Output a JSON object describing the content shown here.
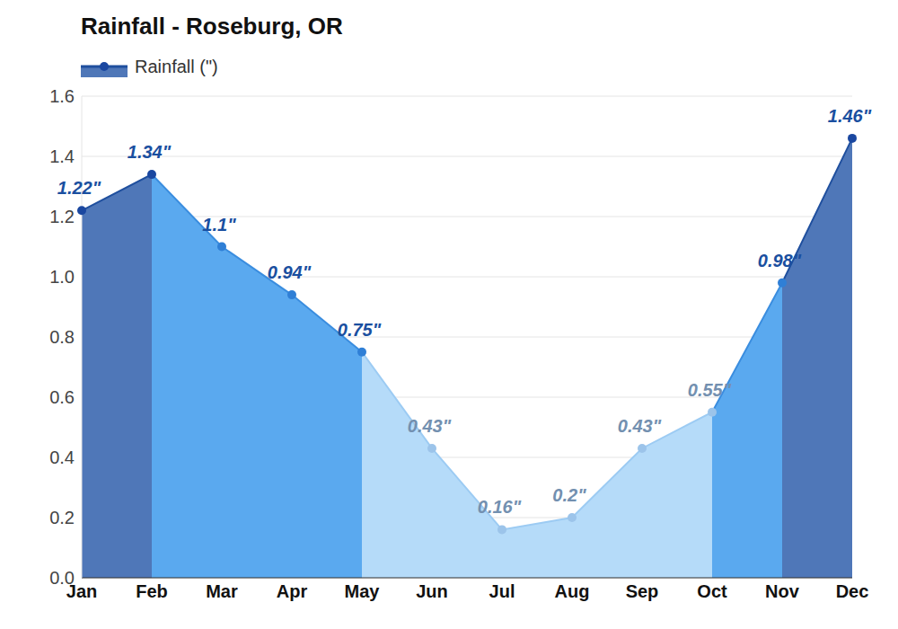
{
  "chart_data": {
    "type": "area",
    "title": "Rainfall - Roseburg, OR",
    "categories": [
      "Jan",
      "Feb",
      "Mar",
      "Apr",
      "May",
      "Jun",
      "Jul",
      "Aug",
      "Sep",
      "Oct",
      "Nov",
      "Dec"
    ],
    "series": [
      {
        "name": "Rainfall (\")",
        "values": [
          1.22,
          1.34,
          1.1,
          0.94,
          0.75,
          0.43,
          0.16,
          0.2,
          0.43,
          0.55,
          0.98,
          1.46
        ],
        "value_labels": [
          "1.22\"",
          "1.34\"",
          "1.1\"",
          "0.94\"",
          "0.75\"",
          "0.43\"",
          "0.16\"",
          "0.2\"",
          "0.43\"",
          "0.55\"",
          "0.98\"",
          "1.46\""
        ],
        "colors": [
          "#4f77b8",
          "#4f77b8",
          "#5aa9ef",
          "#5aa9ef",
          "#5aa9ef",
          "#b5dbf9",
          "#b5dbf9",
          "#b5dbf9",
          "#b5dbf9",
          "#b5dbf9",
          "#5aa9ef",
          "#4f77b8"
        ],
        "marker": "circle"
      }
    ],
    "ylim": [
      0,
      1.6
    ],
    "yticks": [
      {
        "value": 0,
        "label": "0.0"
      },
      0.2,
      0.4,
      0.6,
      0.8,
      {
        "value": 1,
        "label": "1.0"
      },
      1.2,
      1.4,
      1.6
    ],
    "grid": true,
    "data_labels": true,
    "legend": "top-left"
  }
}
